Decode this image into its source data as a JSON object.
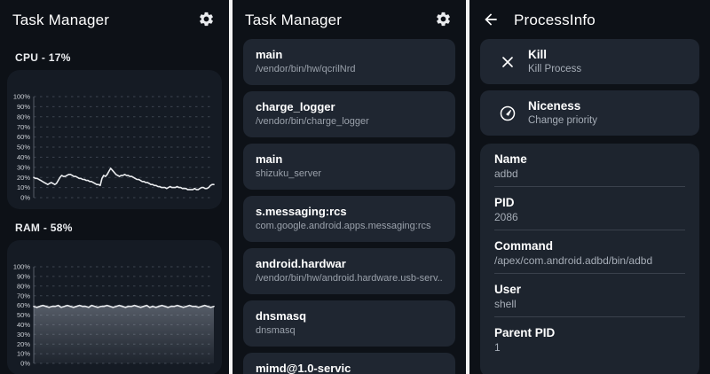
{
  "colors": {
    "screen_background": "#0d1117",
    "card_background": "#1f2631",
    "graph_card_background": "#151b24",
    "detail_card_background": "#1d242e",
    "text_primary": "#ffffff",
    "text_secondary": "#9aa1ab",
    "chart_line": "#e9ebee",
    "grid_line": "#3d444f",
    "panel_divider": "#f2f2f2"
  },
  "monitor": {
    "title": "Task Manager"
  },
  "list": {
    "title": "Task Manager",
    "processes": [
      {
        "name": "main",
        "path": "/vendor/bin/hw/qcrilNrd"
      },
      {
        "name": "charge_logger",
        "path": "/vendor/bin/charge_logger"
      },
      {
        "name": "main",
        "path": "shizuku_server"
      },
      {
        "name": "s.messaging:rcs",
        "path": "com.google.android.apps.messaging:rcs"
      },
      {
        "name": "android.hardwar",
        "path": "/vendor/bin/hw/android.hardware.usb-serv..."
      },
      {
        "name": "dnsmasq",
        "path": "dnsmasq"
      },
      {
        "name": "mimd@1.0-servic",
        "path": ""
      }
    ]
  },
  "detail": {
    "title": "ProcessInfo",
    "actions": [
      {
        "label": "Kill",
        "sublabel": "Kill Process",
        "icon": "close-icon"
      },
      {
        "label": "Niceness",
        "sublabel": "Change priority",
        "icon": "gauge-icon"
      }
    ],
    "fields": [
      {
        "label": "Name",
        "value": "adbd"
      },
      {
        "label": "PID",
        "value": "2086"
      },
      {
        "label": "Command",
        "value": "/apex/com.android.adbd/bin/adbd"
      },
      {
        "label": "User",
        "value": "shell"
      },
      {
        "label": "Parent PID",
        "value": "1"
      }
    ]
  },
  "chart_data": [
    {
      "type": "line",
      "title": "CPU - 17%",
      "metric": "CPU",
      "current_value": 17,
      "unit": "%",
      "ylim": [
        0,
        100
      ],
      "yticks": [
        0,
        10,
        20,
        30,
        40,
        50,
        60,
        70,
        80,
        90,
        100
      ],
      "grid": true,
      "fill": false,
      "values": [
        20,
        19,
        19,
        18,
        17,
        16,
        15,
        14,
        13,
        14,
        15,
        14,
        13,
        14,
        17,
        20,
        22,
        21,
        21,
        22,
        23,
        23,
        22,
        21,
        21,
        20,
        19,
        19,
        18,
        18,
        17,
        17,
        16,
        16,
        15,
        14,
        13,
        13,
        12,
        19,
        22,
        21,
        23,
        26,
        29,
        27,
        25,
        23,
        22,
        21,
        22,
        22,
        23,
        22,
        22,
        21,
        21,
        20,
        19,
        18,
        18,
        17,
        16,
        16,
        15,
        15,
        14,
        13,
        13,
        12,
        12,
        11,
        11,
        10,
        10,
        10,
        9,
        10,
        11,
        10,
        10,
        10,
        11,
        10,
        10,
        9,
        9,
        9,
        8,
        8,
        8,
        8,
        9,
        8,
        8,
        9,
        10,
        10,
        9,
        9,
        10,
        12,
        13,
        13
      ]
    },
    {
      "type": "area",
      "title": "RAM - 58%",
      "metric": "RAM",
      "current_value": 58,
      "unit": "%",
      "ylim": [
        0,
        100
      ],
      "yticks": [
        0,
        10,
        20,
        30,
        40,
        50,
        60,
        70,
        80,
        90,
        100
      ],
      "grid": true,
      "fill": true,
      "values": [
        59,
        58,
        59,
        60,
        59,
        58,
        59,
        59,
        60,
        58,
        59,
        60,
        59,
        58,
        59,
        60,
        59,
        59,
        58,
        60,
        59,
        58,
        59,
        59,
        60,
        59,
        58,
        59,
        60,
        59,
        58,
        59,
        59,
        60,
        59,
        58,
        59,
        60,
        58,
        59,
        58,
        59,
        60,
        59,
        58,
        59,
        59,
        60,
        59,
        58,
        59,
        60,
        59,
        59,
        58,
        59,
        60,
        59,
        58,
        59
      ]
    }
  ]
}
